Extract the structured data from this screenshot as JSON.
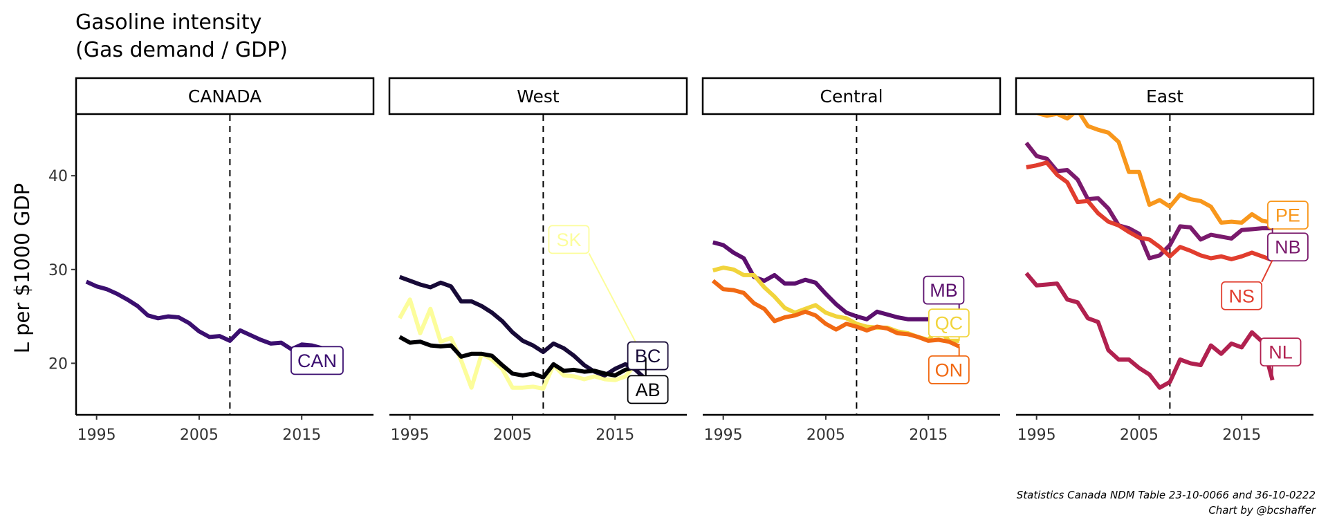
{
  "title_line1": "Gasoline intensity",
  "title_line2": "(Gas demand / GDP)",
  "caption_line1": "Statistics Canada NDM Table 23-10-0066 and 36-10-0222",
  "caption_line2": "Chart by @bcshaffer",
  "chart_data": {
    "type": "line",
    "title": "Gasoline intensity\n(Gas demand / GDP)",
    "ylabel": "L per $1000 GDP",
    "xlim": [
      1993,
      2022
    ],
    "ylim": [
      14.5,
      46.5
    ],
    "x_ticks": [
      1995,
      2005,
      2015
    ],
    "y_ticks": [
      20,
      30,
      40
    ],
    "reference_line_x": 2008,
    "grid": false,
    "legend": "none",
    "x": [
      1994,
      1995,
      1996,
      1997,
      1998,
      1999,
      2000,
      2001,
      2002,
      2003,
      2004,
      2005,
      2006,
      2007,
      2008,
      2009,
      2010,
      2011,
      2012,
      2013,
      2014,
      2015,
      2016,
      2017,
      2018
    ],
    "panels": [
      {
        "name": "CANADA",
        "series": [
          {
            "name": "CAN",
            "color": "#3b0f70",
            "label_pos": [
              2016.5,
              20.3
            ],
            "values": [
              28.7,
              28.2,
              27.9,
              27.4,
              26.8,
              26.1,
              25.1,
              24.8,
              25.0,
              24.9,
              24.3,
              23.4,
              22.8,
              22.9,
              22.4,
              23.5,
              23.0,
              22.5,
              22.1,
              22.2,
              21.5,
              22.0,
              21.9,
              21.6,
              21.1
            ]
          }
        ]
      },
      {
        "name": "West",
        "series": [
          {
            "name": "SK",
            "color": "#fcfd9b",
            "label_pos": [
              2010.5,
              33.2
            ],
            "values": [
              24.8,
              26.8,
              23.2,
              25.8,
              22.3,
              22.7,
              20.3,
              17.4,
              21.0,
              20.4,
              19.4,
              17.4,
              17.4,
              17.5,
              17.3,
              19.8,
              18.7,
              18.6,
              18.3,
              18.6,
              18.3,
              18.2,
              18.6,
              19.9,
              20.2
            ]
          },
          {
            "name": "BC",
            "color": "#170a37",
            "label_pos": [
              2018.2,
              20.8
            ],
            "values": [
              29.2,
              28.8,
              28.4,
              28.1,
              28.6,
              28.2,
              26.6,
              26.6,
              26.1,
              25.4,
              24.5,
              23.3,
              22.4,
              21.9,
              21.2,
              22.1,
              21.6,
              20.8,
              19.8,
              19.1,
              18.7,
              19.4,
              19.9,
              19.3,
              18.3
            ]
          },
          {
            "name": "AB",
            "color": "#000004",
            "label_pos": [
              2018.2,
              17.2
            ],
            "values": [
              22.8,
              22.2,
              22.3,
              21.9,
              21.8,
              21.9,
              20.7,
              21.0,
              21.0,
              20.8,
              19.8,
              18.9,
              18.7,
              18.9,
              18.5,
              19.9,
              19.2,
              19.3,
              19.1,
              19.2,
              18.9,
              18.7,
              19.3,
              19.6,
              20.6
            ]
          }
        ]
      },
      {
        "name": "Central",
        "series": [
          {
            "name": "MB",
            "color": "#5b0f6d",
            "label_pos": [
              2016.5,
              27.8
            ],
            "values": [
              32.9,
              32.6,
              31.8,
              31.2,
              29.2,
              28.8,
              29.4,
              28.5,
              28.5,
              28.9,
              28.6,
              27.4,
              26.3,
              25.4,
              25.0,
              24.7,
              25.5,
              25.2,
              24.9,
              24.7,
              24.7,
              24.7,
              24.7,
              24.6,
              24.2
            ]
          },
          {
            "name": "QC",
            "color": "#f1d43c",
            "label_pos": [
              2017.0,
              24.3
            ],
            "values": [
              29.9,
              30.2,
              30.0,
              29.4,
              29.4,
              28.1,
              27.1,
              25.9,
              25.4,
              25.8,
              26.2,
              25.4,
              25.0,
              24.8,
              24.2,
              23.9,
              23.8,
              23.8,
              23.4,
              23.2,
              22.8,
              22.5,
              23.7,
              22.4,
              22.4
            ]
          },
          {
            "name": "ON",
            "color": "#f16913",
            "label_pos": [
              2017.0,
              19.3
            ],
            "values": [
              28.8,
              27.9,
              27.8,
              27.5,
              26.4,
              25.8,
              24.5,
              24.9,
              25.1,
              25.5,
              25.1,
              24.2,
              23.6,
              24.2,
              23.9,
              23.5,
              23.9,
              23.7,
              23.2,
              23.1,
              22.8,
              22.4,
              22.5,
              22.3,
              21.8
            ]
          }
        ]
      },
      {
        "name": "East",
        "series": [
          {
            "name": "PE",
            "color": "#f8971c",
            "label_pos": [
              2019.5,
              35.8
            ],
            "values": [
              47.3,
              46.7,
              46.4,
              46.6,
              46.1,
              47.0,
              45.3,
              44.9,
              44.6,
              43.6,
              40.4,
              40.4,
              36.9,
              37.4,
              36.7,
              38.0,
              37.5,
              37.3,
              36.7,
              35.0,
              35.1,
              35.0,
              35.9,
              35.2,
              35.0
            ]
          },
          {
            "name": "NB",
            "color": "#7a1a6c",
            "label_pos": [
              2019.5,
              32.4
            ],
            "values": [
              43.5,
              42.1,
              41.8,
              40.5,
              40.6,
              39.6,
              37.5,
              37.6,
              36.5,
              34.7,
              34.4,
              33.8,
              31.2,
              31.5,
              32.6,
              34.6,
              34.5,
              33.2,
              33.7,
              33.5,
              33.3,
              34.2,
              34.3,
              34.4,
              34.4
            ]
          },
          {
            "name": "NS",
            "color": "#e13d2e",
            "label_pos": [
              2015.0,
              27.2
            ],
            "values": [
              40.9,
              41.1,
              41.4,
              40.1,
              39.3,
              37.2,
              37.3,
              36.0,
              35.1,
              34.7,
              34.0,
              33.4,
              33.2,
              32.4,
              31.4,
              32.4,
              32.0,
              31.5,
              31.2,
              31.4,
              31.1,
              31.4,
              31.8,
              31.4,
              31.0
            ]
          },
          {
            "name": "NL",
            "color": "#b1214f",
            "label_pos": [
              2018.8,
              21.2
            ],
            "values": [
              29.6,
              28.3,
              28.4,
              28.5,
              26.8,
              26.5,
              24.8,
              24.4,
              21.4,
              20.4,
              20.4,
              19.5,
              18.8,
              17.4,
              18.0,
              20.4,
              20.0,
              19.8,
              21.9,
              21.0,
              22.1,
              21.7,
              23.3,
              22.3,
              18.2
            ]
          }
        ]
      }
    ]
  }
}
